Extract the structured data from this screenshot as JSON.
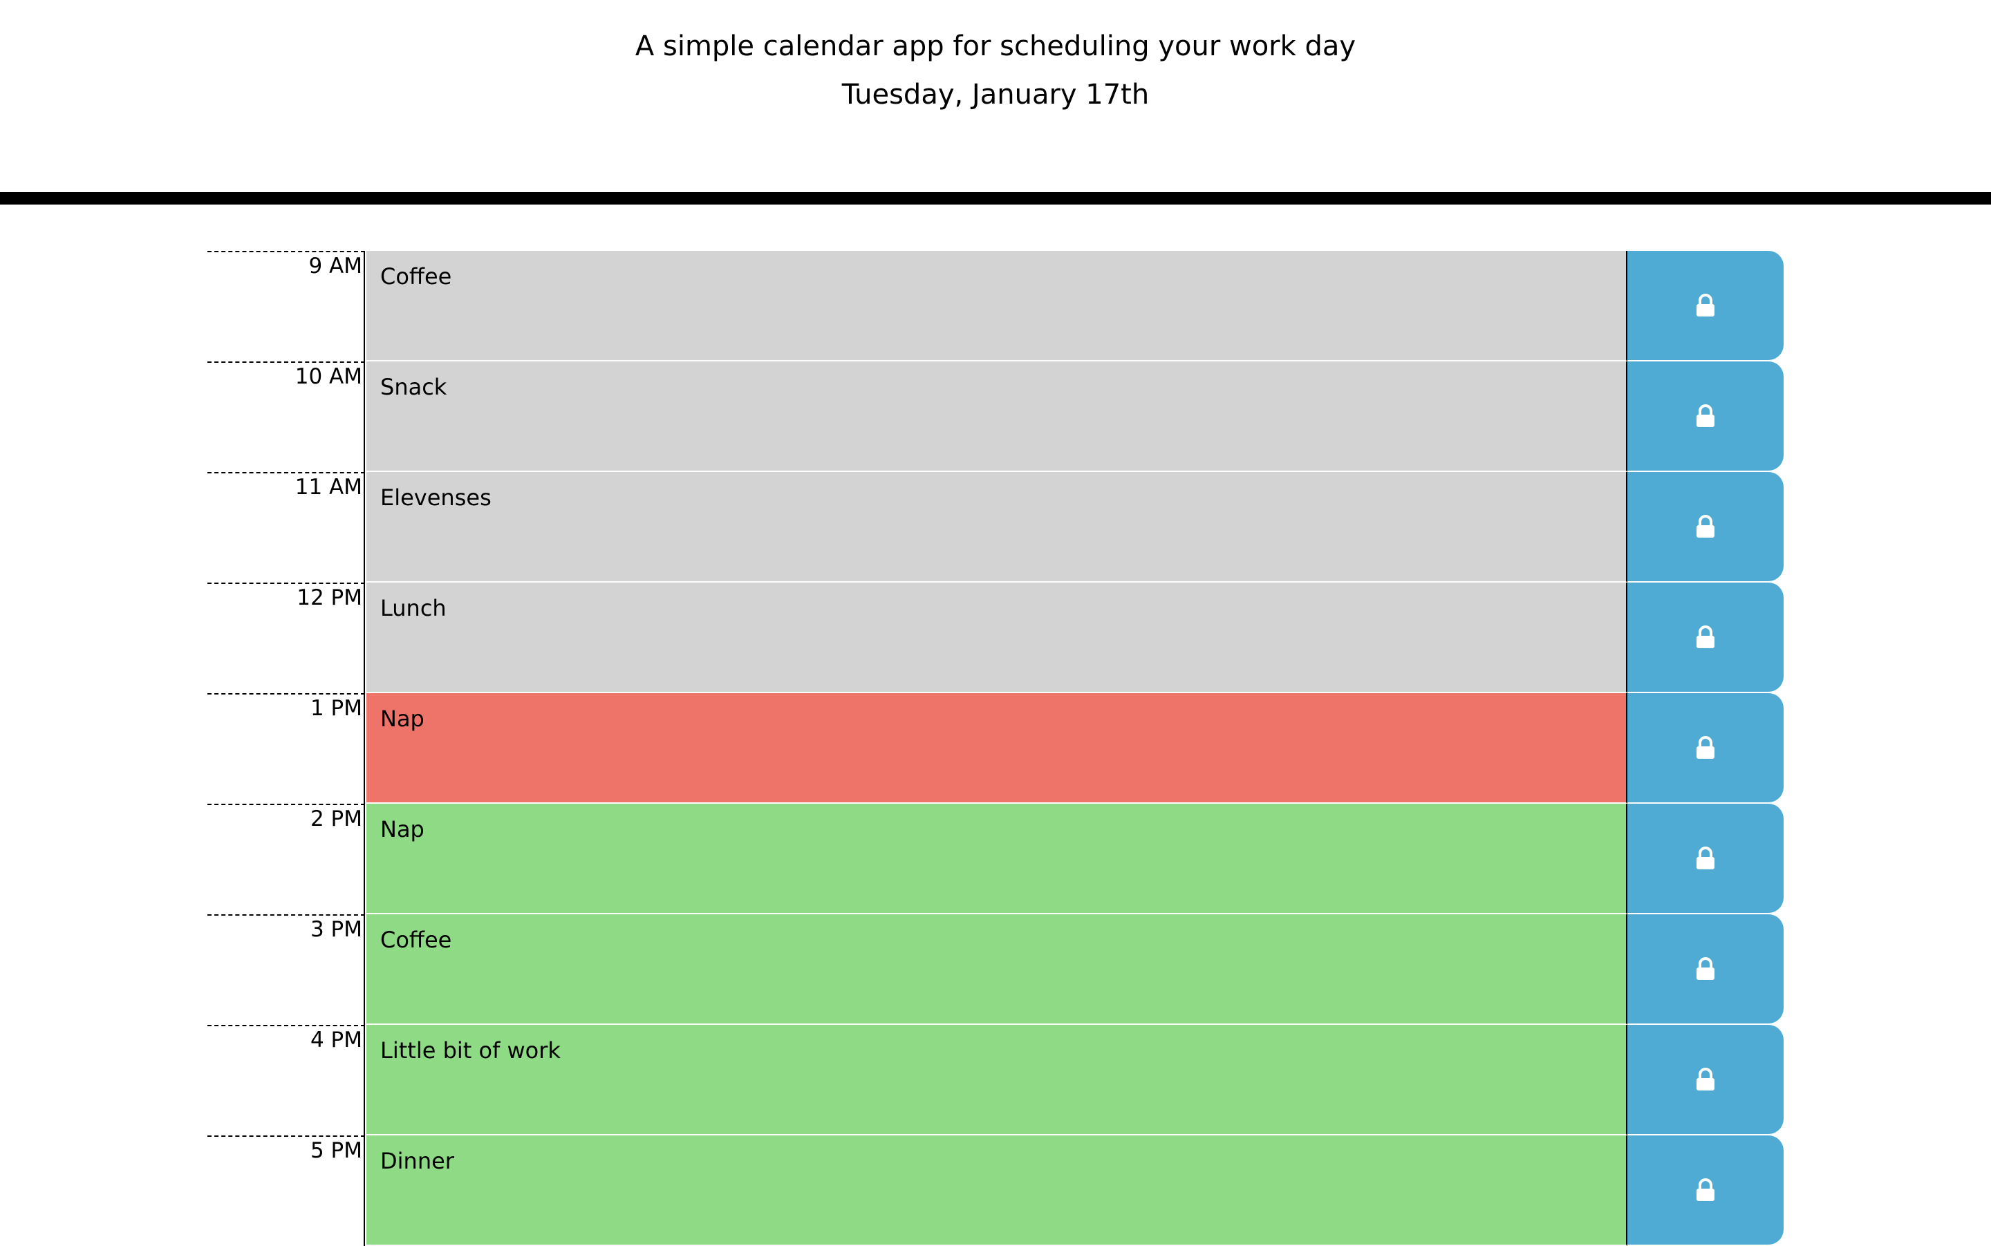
{
  "header": {
    "subtitle": "A simple calendar app for scheduling your work day",
    "current_day": "Tuesday, January 17th"
  },
  "colors": {
    "past": "#d3d3d3",
    "present": "#ee746a",
    "future": "#8fda84",
    "save_button": "#4fabd4"
  },
  "save_icon": "lock-icon",
  "time_blocks": [
    {
      "hour": "9 AM",
      "text": "Coffee",
      "state": "past"
    },
    {
      "hour": "10 AM",
      "text": "Snack",
      "state": "past"
    },
    {
      "hour": "11 AM",
      "text": "Elevenses",
      "state": "past"
    },
    {
      "hour": "12 PM",
      "text": "Lunch",
      "state": "past"
    },
    {
      "hour": "1 PM",
      "text": "Nap",
      "state": "present"
    },
    {
      "hour": "2 PM",
      "text": "Nap",
      "state": "future"
    },
    {
      "hour": "3 PM",
      "text": "Coffee",
      "state": "future"
    },
    {
      "hour": "4 PM",
      "text": "Little bit of work",
      "state": "future"
    },
    {
      "hour": "5 PM",
      "text": "Dinner",
      "state": "future"
    }
  ]
}
